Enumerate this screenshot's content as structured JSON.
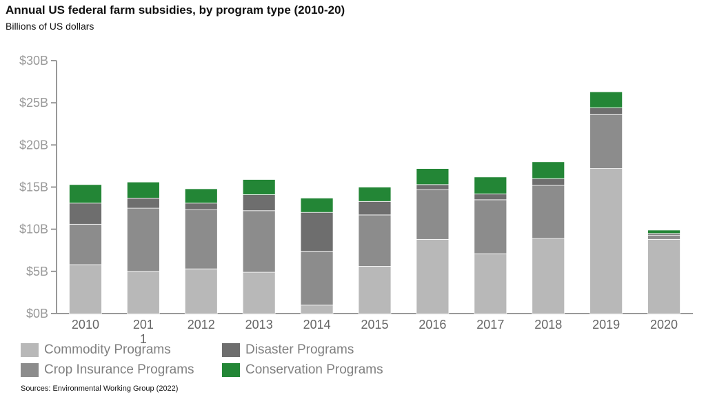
{
  "title": "Annual US federal farm subsidies, by program type (2010-20)",
  "subtitle": "Billions of US dollars",
  "source": "Sources: Environmental Working Group (2022)",
  "chart_data": {
    "type": "bar",
    "stacked": true,
    "categories": [
      "2010",
      "201\n1",
      "2012",
      "2013",
      "2014",
      "2015",
      "2016",
      "2017",
      "2018",
      "2019",
      "2020"
    ],
    "ylim": [
      0,
      30
    ],
    "yticks": [
      0,
      5,
      10,
      15,
      20,
      25,
      30
    ],
    "ytick_labels": [
      "$0B",
      "$5B",
      "$10B",
      "$15B",
      "$20B",
      "$25B",
      "$30B"
    ],
    "legend_position": "bottom",
    "series": [
      {
        "name": "Commodity Programs",
        "color": "#b8b8b8",
        "values": [
          5.8,
          5.0,
          5.3,
          4.9,
          1.0,
          5.6,
          8.8,
          7.1,
          8.9,
          17.2,
          8.8
        ]
      },
      {
        "name": "Crop Insurance Programs",
        "color": "#8c8c8c",
        "values": [
          4.8,
          7.5,
          7.0,
          7.3,
          6.4,
          6.1,
          5.9,
          6.4,
          6.3,
          6.4,
          0.5
        ]
      },
      {
        "name": "Disaster Programs",
        "color": "#6e6e6e",
        "values": [
          2.5,
          1.2,
          0.8,
          1.9,
          4.6,
          1.6,
          0.6,
          0.7,
          0.8,
          0.8,
          0.2
        ]
      },
      {
        "name": "Conservation Programs",
        "color": "#238636",
        "values": [
          2.2,
          1.9,
          1.7,
          1.8,
          1.7,
          1.7,
          1.9,
          2.0,
          2.0,
          1.9,
          0.4
        ]
      }
    ]
  }
}
